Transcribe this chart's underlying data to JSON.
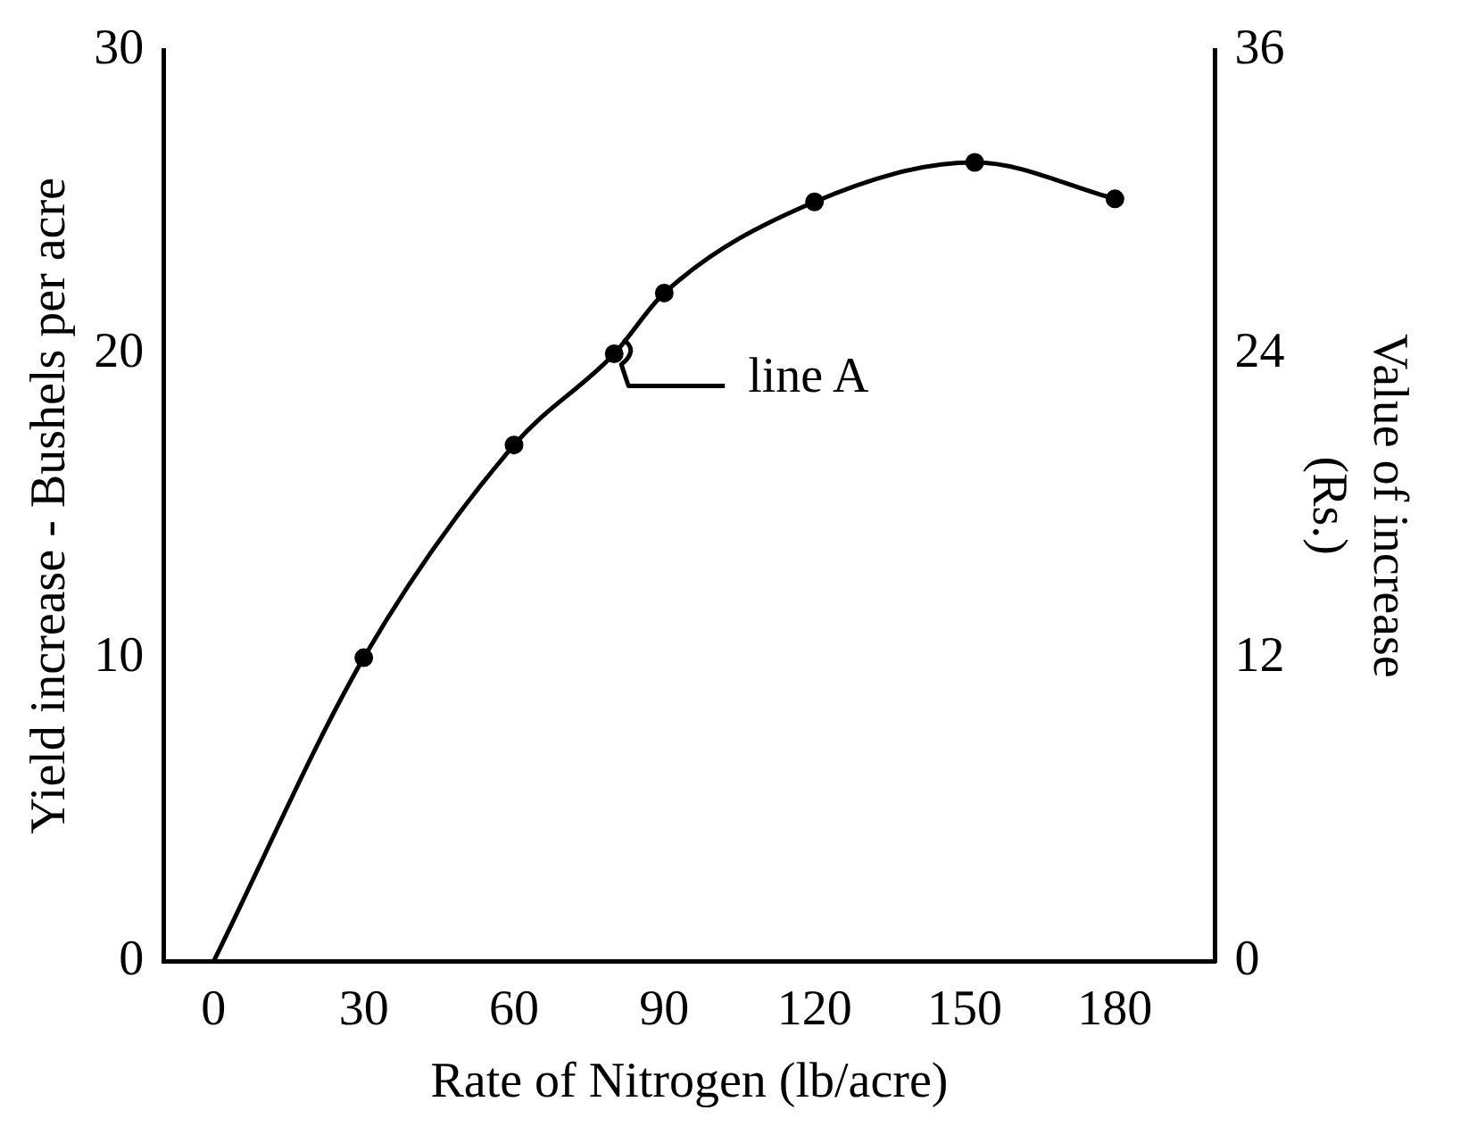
{
  "chart_data": {
    "type": "line",
    "xlabel": "Rate of Nitrogen (lb/acre)",
    "ylabel": "Yield increase - Bushels per acre",
    "y2label": "Value of increase\n(Rs.)",
    "x": [
      0,
      30,
      60,
      80,
      90,
      120,
      152,
      180
    ],
    "series": [
      {
        "color": "#000000",
        "values": [
          0,
          10,
          17,
          20,
          22,
          25,
          26.3,
          25.1
        ]
      }
    ],
    "xlim": [
      -10,
      200
    ],
    "xticks": [
      0,
      30,
      60,
      90,
      120,
      150,
      180
    ],
    "ylim": [
      0,
      30
    ],
    "yticks": [
      0,
      10,
      20,
      30
    ],
    "y2lim": [
      0,
      36
    ],
    "y2ticks": [
      0,
      12,
      24,
      36
    ],
    "annotations": [
      {
        "text": "line A",
        "x": 80,
        "y": 20
      }
    ],
    "marker": "circle",
    "grid": false,
    "legend": false
  }
}
